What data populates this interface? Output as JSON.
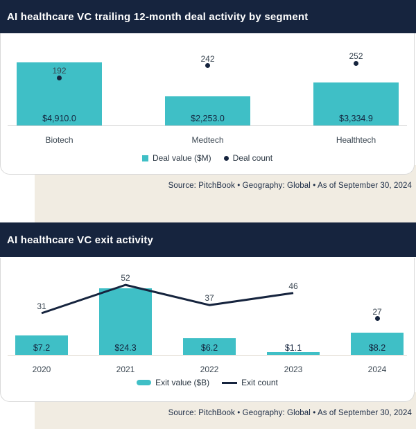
{
  "colors": {
    "accent_teal": "#3FBFC6",
    "navy": "#16243E",
    "beige_background": "#F1ECE2"
  },
  "chart_data": [
    {
      "type": "bar",
      "title": "AI healthcare VC trailing 12-month deal activity by segment",
      "categories": [
        "Biotech",
        "Medtech",
        "Healthtech"
      ],
      "series": [
        {
          "name": "Deal value ($M)",
          "kind": "bar",
          "values": [
            4910.0,
            2253.0,
            3334.9
          ],
          "value_labels": [
            "$4,910.0",
            "$2,253.0",
            "$3,334.9"
          ],
          "color": "#3FBFC6"
        },
        {
          "name": "Deal count",
          "kind": "point",
          "values": [
            192,
            242,
            252
          ],
          "color": "#16243E"
        }
      ],
      "grid": false,
      "legend_position": "bottom-center",
      "source": "Source: PitchBook  •  Geography: Global  •  As of September 30, 2024"
    },
    {
      "type": "bar+line",
      "title": "AI healthcare VC exit activity",
      "categories": [
        "2020",
        "2021",
        "2022",
        "2023",
        "2024"
      ],
      "series": [
        {
          "name": "Exit value ($B)",
          "kind": "bar",
          "values": [
            7.2,
            24.3,
            6.2,
            1.1,
            8.2
          ],
          "value_labels": [
            "$7.2",
            "$24.3",
            "$6.2",
            "$1.1",
            "$8.2"
          ],
          "color": "#3FBFC6"
        },
        {
          "name": "Exit count",
          "kind": "line",
          "values": [
            31,
            52,
            37,
            46,
            27
          ],
          "connected_points": [
            "2020",
            "2021",
            "2022",
            "2023"
          ],
          "isolated_dot_points": [
            "2024"
          ],
          "color": "#16243E"
        }
      ],
      "grid": false,
      "legend_position": "bottom-center",
      "source": "Source: PitchBook  •  Geography: Global  •  As of September 30, 2024"
    }
  ]
}
